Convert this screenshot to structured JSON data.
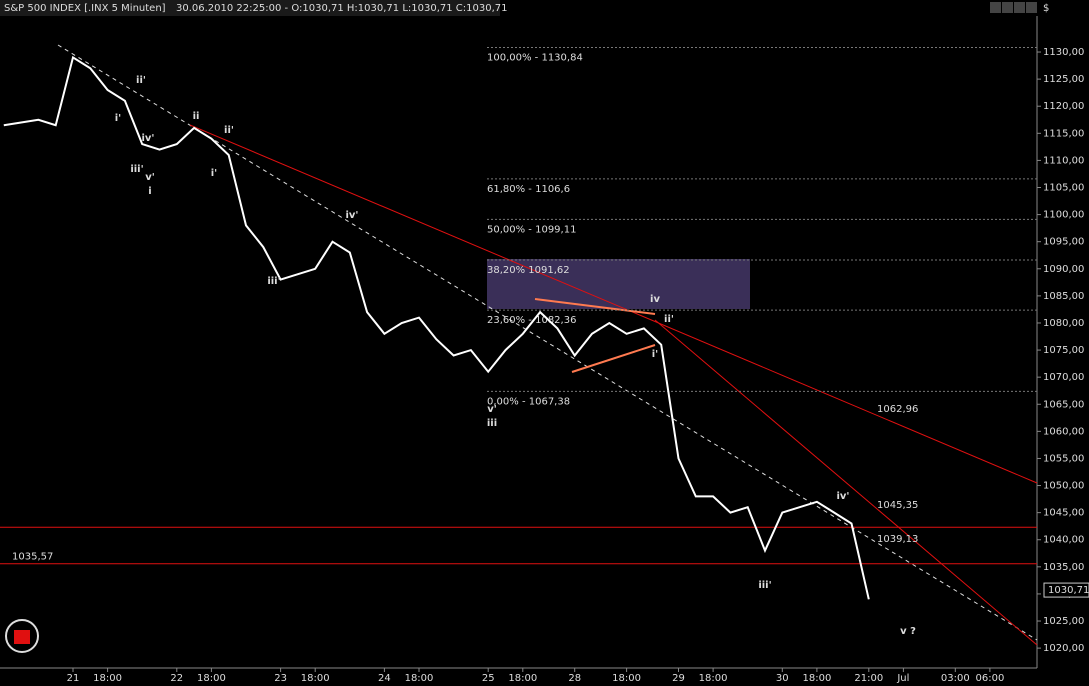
{
  "header": {
    "symbol": "S&P 500 INDEX [.INX  5 Minuten]",
    "quote": "30.06.2010 22:25:00 - O:1030,71 H:1030,71 L:1030,71 C:1030,71",
    "currency": "$"
  },
  "chart_data": {
    "type": "line",
    "categories": [
      null,
      null,
      null,
      null,
      "21",
      null,
      "18:00",
      null,
      null,
      null,
      "22",
      null,
      "18:00",
      null,
      null,
      null,
      "23",
      null,
      "18:00",
      null,
      null,
      null,
      "24",
      null,
      "18:00",
      null,
      null,
      null,
      "25",
      null,
      "18:00",
      null,
      null,
      "28",
      null,
      null,
      "18:00",
      null,
      null,
      "29",
      null,
      "18:00",
      null,
      null,
      null,
      "30",
      null,
      "18:00",
      null,
      null,
      "21:00",
      null,
      "Jul",
      null,
      null,
      "03:00",
      null,
      "06:00"
    ],
    "series": [
      {
        "color": "#ffffff",
        "values": [
          1116.5,
          1117,
          1117.5,
          1116.5,
          1129,
          1127,
          1123,
          1121,
          1113,
          1112,
          1113,
          1116,
          1114,
          1111,
          1098,
          1094,
          1088,
          1089,
          1090,
          1095,
          1093,
          1082,
          1078,
          1080,
          1081,
          1077,
          1074,
          1075,
          1071,
          1075,
          1078,
          1082,
          1079,
          1074,
          1078,
          1080,
          1078,
          1079,
          1076,
          1055,
          1048,
          1048,
          1045,
          1046,
          1038,
          1045,
          1046,
          1047,
          1045,
          1043,
          1029,
          null,
          null,
          null,
          null,
          null,
          null,
          null
        ]
      }
    ],
    "last_price": {
      "value": 1030.71,
      "label": "1030,71"
    },
    "ylim": [
      1016.7,
      1139.6
    ],
    "yticks": [
      {
        "value": 1020,
        "label": "1020,00"
      },
      {
        "value": 1025,
        "label": "1025,00"
      },
      {
        "value": 1030,
        "label": "1030,00"
      },
      {
        "value": 1035,
        "label": "1035,00"
      },
      {
        "value": 1040,
        "label": "1040,00"
      },
      {
        "value": 1045,
        "label": "1045,00"
      },
      {
        "value": 1050,
        "label": "1050,00"
      },
      {
        "value": 1055,
        "label": "1055,00"
      },
      {
        "value": 1060,
        "label": "1060,00"
      },
      {
        "value": 1065,
        "label": "1065,00"
      },
      {
        "value": 1070,
        "label": "1070,00"
      },
      {
        "value": 1075,
        "label": "1075,00"
      },
      {
        "value": 1080,
        "label": "1080,00"
      },
      {
        "value": 1085,
        "label": "1085,00"
      },
      {
        "value": 1090,
        "label": "1090,00"
      },
      {
        "value": 1095,
        "label": "1095,00"
      },
      {
        "value": 1100,
        "label": "1100,00"
      },
      {
        "value": 1105,
        "label": "1105,00"
      },
      {
        "value": 1110,
        "label": "1110,00"
      },
      {
        "value": 1115,
        "label": "1115,00"
      },
      {
        "value": 1120,
        "label": "1120,00"
      },
      {
        "value": 1125,
        "label": "1125,00"
      },
      {
        "value": 1130,
        "label": "1130,00"
      }
    ],
    "fib_levels": [
      {
        "value": 1130.84,
        "label": "100,00% - 1130,84"
      },
      {
        "value": 1106.6,
        "label": "61,80% - 1106,6"
      },
      {
        "value": 1099.11,
        "label": "50,00% - 1099,11"
      },
      {
        "value": 1091.62,
        "label": "38,20%   1091,62"
      },
      {
        "value": 1082.36,
        "label": "23,60% - 1082,36"
      },
      {
        "value": 1067.38,
        "label": "0,00% - 1067,38"
      }
    ],
    "hlines": [
      {
        "value": 1035.57,
        "label": "1035,57"
      },
      {
        "value": 1042.3
      }
    ],
    "trend_labels": [
      {
        "text": "1062,96",
        "color": "#ff3030"
      },
      {
        "text": "1045,35",
        "color": "#ff3030"
      },
      {
        "text": "1039,13",
        "color": "#ffffff"
      }
    ],
    "annotations": [
      {
        "text": "ii'",
        "color": "#ffff00"
      },
      {
        "text": "i'",
        "color": "#ffff00"
      },
      {
        "text": "iv'",
        "color": "#ffff00"
      },
      {
        "text": "iii'",
        "color": "#ffff00"
      },
      {
        "text": "v'",
        "color": "#ffff00"
      },
      {
        "text": "i",
        "color": "#ff6a3a"
      },
      {
        "text": "ii",
        "color": "#ff6a3a"
      },
      {
        "text": "ii'",
        "color": "#ffff00"
      },
      {
        "text": "i'",
        "color": "#ffff00"
      },
      {
        "text": "iv'",
        "color": "#ffff00"
      },
      {
        "text": "iii'",
        "color": "#ffff00"
      },
      {
        "text": "iv",
        "color": "#ff6a3a"
      },
      {
        "text": "ii'",
        "color": "#ffff00"
      },
      {
        "text": "i'",
        "color": "#ffff00"
      },
      {
        "text": "v'",
        "color": "#ffff00"
      },
      {
        "text": "iii",
        "color": "#ff6a3a"
      },
      {
        "text": "iv'",
        "color": "#ffff00"
      },
      {
        "text": "iii'",
        "color": "#ffff00"
      },
      {
        "text": "v ?",
        "color": "#ff6a3a"
      }
    ]
  }
}
